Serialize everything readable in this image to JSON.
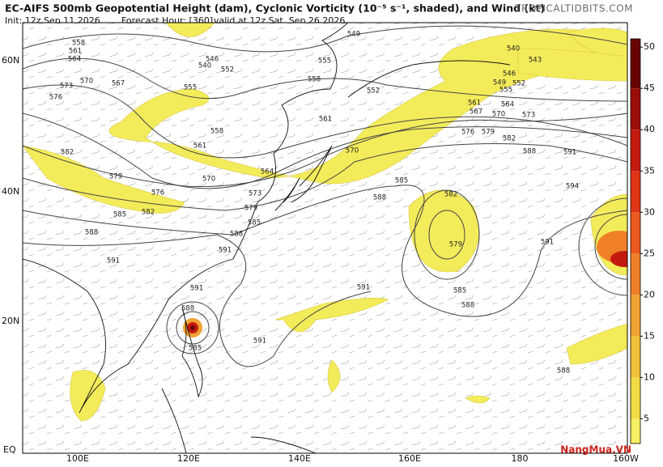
{
  "header": {
    "title": "EC-AIFS 500mb Geopotential Height (dam), Cyclonic Vorticity (10⁻⁵ s⁻¹, shaded), and Wind (kt)",
    "init": "Init: 12z Sep 11 2026",
    "forecast_hour": "Forecast Hour: [360]",
    "valid": "valid at 12z Sat, Sep 26 2026",
    "site": "TROPICALTIDBITS.COM"
  },
  "map": {
    "lat_labels": [
      "60N",
      "40N",
      "20N",
      "EQ"
    ],
    "lon_labels": [
      "100E",
      "120E",
      "140E",
      "160E",
      "180",
      "160W"
    ],
    "contour_labels": [
      "558",
      "561",
      "564",
      "570",
      "567",
      "573",
      "576",
      "555",
      "552",
      "549",
      "546",
      "540",
      "555",
      "558",
      "552",
      "561",
      "558",
      "561",
      "570",
      "564",
      "573",
      "579",
      "576",
      "579",
      "582",
      "585",
      "588",
      "591",
      "585",
      "588",
      "591",
      "582",
      "570",
      "576",
      "579",
      "582",
      "588",
      "591",
      "594",
      "585",
      "588",
      "582",
      "579",
      "585",
      "588",
      "591",
      "591",
      "591",
      "588",
      "585",
      "591",
      "588",
      "540",
      "543",
      "546",
      "549",
      "552",
      "555",
      "561",
      "564",
      "567",
      "570",
      "573"
    ]
  },
  "colorbar": {
    "clim": [
      2,
      51
    ],
    "ticks": [
      5,
      10,
      15,
      20,
      25,
      30,
      35,
      40,
      45,
      50
    ],
    "colors": [
      "#f5ef62",
      "#f1dc44",
      "#f1c03a",
      "#f0a232",
      "#ef8028",
      "#ec5a1e",
      "#e03416",
      "#c41a0e",
      "#9c0c08",
      "#6a0404"
    ]
  },
  "watermark": "NangMua.VN"
}
